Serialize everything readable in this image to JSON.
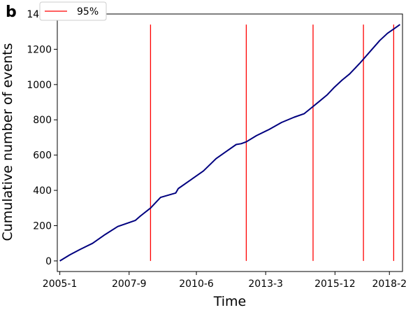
{
  "panel_label": "b",
  "chart_data": {
    "type": "line",
    "xlabel": "Time",
    "ylabel": "Cumulative number of events",
    "xlim": [
      -0.1,
      13.6
    ],
    "ylim": [
      -60,
      1400
    ],
    "x_ticks": [
      {
        "value": 0,
        "label": "2005-1"
      },
      {
        "value": 2.75,
        "label": "2007-9"
      },
      {
        "value": 5.42,
        "label": "2010-6"
      },
      {
        "value": 8.17,
        "label": "2013-3"
      },
      {
        "value": 10.92,
        "label": "2015-12"
      },
      {
        "value": 13.08,
        "label": "2018-2"
      }
    ],
    "y_ticks": [
      0,
      200,
      400,
      600,
      800,
      1000,
      1200,
      1400
    ],
    "series": [
      {
        "color": "#00007f",
        "x": [
          0,
          0.4,
          0.8,
          1.3,
          1.8,
          2.3,
          2.6,
          3.0,
          3.2,
          3.6,
          4.0,
          4.6,
          4.7,
          5.2,
          5.7,
          6.2,
          6.6,
          7.0,
          7.2,
          7.4,
          7.8,
          8.3,
          8.8,
          9.3,
          9.7,
          10.0,
          10.3,
          10.6,
          10.9,
          11.2,
          11.5,
          11.9,
          12.3,
          12.7,
          13.0,
          13.3,
          13.5
        ],
        "y": [
          0,
          35,
          65,
          100,
          150,
          195,
          210,
          230,
          255,
          300,
          360,
          385,
          410,
          460,
          510,
          580,
          620,
          660,
          665,
          675,
          710,
          745,
          785,
          815,
          835,
          870,
          905,
          940,
          985,
          1025,
          1060,
          1120,
          1185,
          1250,
          1290,
          1320,
          1340
        ]
      }
    ],
    "vlines": {
      "color": "#ff0000",
      "x": [
        3.6,
        7.4,
        10.05,
        12.05,
        13.25
      ],
      "y_range": [
        0,
        1340
      ]
    },
    "legend": {
      "entries": [
        {
          "label": "95%",
          "color": "#ff0000"
        }
      ],
      "placement": "top-left"
    }
  }
}
